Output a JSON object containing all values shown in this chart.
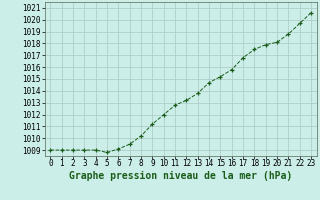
{
  "x": [
    0,
    1,
    2,
    3,
    4,
    5,
    6,
    7,
    8,
    9,
    10,
    11,
    12,
    13,
    14,
    15,
    16,
    17,
    18,
    19,
    20,
    21,
    22,
    23
  ],
  "y": [
    1009.0,
    1009.0,
    1009.0,
    1009.0,
    1009.0,
    1008.8,
    1009.1,
    1009.5,
    1010.2,
    1011.2,
    1012.0,
    1012.8,
    1013.2,
    1013.8,
    1014.7,
    1015.2,
    1015.8,
    1016.8,
    1017.5,
    1017.9,
    1018.1,
    1018.8,
    1019.7,
    1020.6
  ],
  "line_color": "#1a5c1a",
  "marker": "+",
  "marker_color": "#1a5c1a",
  "bg_color": "#cceee8",
  "grid_color": "#aac8c4",
  "title": "Graphe pression niveau de la mer (hPa)",
  "title_color": "#1a5c1a",
  "xlim": [
    -0.5,
    23.5
  ],
  "ylim": [
    1008.5,
    1021.5
  ],
  "yticks": [
    1009,
    1010,
    1011,
    1012,
    1013,
    1014,
    1015,
    1016,
    1017,
    1018,
    1019,
    1020,
    1021
  ],
  "xticks": [
    0,
    1,
    2,
    3,
    4,
    5,
    6,
    7,
    8,
    9,
    10,
    11,
    12,
    13,
    14,
    15,
    16,
    17,
    18,
    19,
    20,
    21,
    22,
    23
  ],
  "tick_fontsize": 5.5,
  "title_fontsize": 7.0,
  "linewidth": 0.7,
  "markersize": 3.5,
  "markeredgewidth": 0.9
}
